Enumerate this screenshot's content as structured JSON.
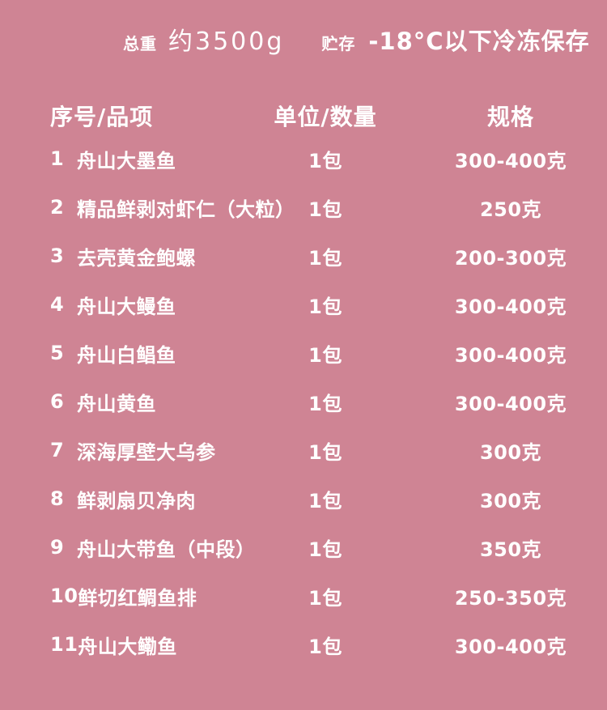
{
  "colors": {
    "background": "#cf8494",
    "text": "#ffffff"
  },
  "info_bar": {
    "total_weight_label": "总重",
    "total_weight_value": "约3500g",
    "storage_label": "贮存",
    "storage_value": "-18°C以下冷冻保存"
  },
  "table": {
    "headers": {
      "item": "序号/品项",
      "unit": "单位/数量",
      "spec": "规格"
    },
    "rows": [
      {
        "no": "1",
        "name": "舟山大墨鱼",
        "unit": "1包",
        "spec": "300-400克"
      },
      {
        "no": "2",
        "name": "精品鲜剥对虾仁（大粒）",
        "unit": "1包",
        "spec": "250克"
      },
      {
        "no": "3",
        "name": "去壳黄金鲍螺",
        "unit": "1包",
        "spec": "200-300克"
      },
      {
        "no": "4",
        "name": "舟山大鳗鱼",
        "unit": "1包",
        "spec": "300-400克"
      },
      {
        "no": "5",
        "name": "舟山白鲳鱼",
        "unit": "1包",
        "spec": "300-400克"
      },
      {
        "no": "6",
        "name": "舟山黄鱼",
        "unit": "1包",
        "spec": "300-400克"
      },
      {
        "no": "7",
        "name": "深海厚壁大乌参",
        "unit": "1包",
        "spec": "300克"
      },
      {
        "no": "8",
        "name": "鲜剥扇贝净肉",
        "unit": "1包",
        "spec": "300克"
      },
      {
        "no": "9",
        "name": "舟山大带鱼（中段）",
        "unit": "1包",
        "spec": "350克"
      },
      {
        "no": "10",
        "name": "鲜切红鲷鱼排",
        "unit": "1包",
        "spec": "250-350克"
      },
      {
        "no": "11",
        "name": "舟山大鳓鱼",
        "unit": "1包",
        "spec": "300-400克"
      }
    ]
  }
}
